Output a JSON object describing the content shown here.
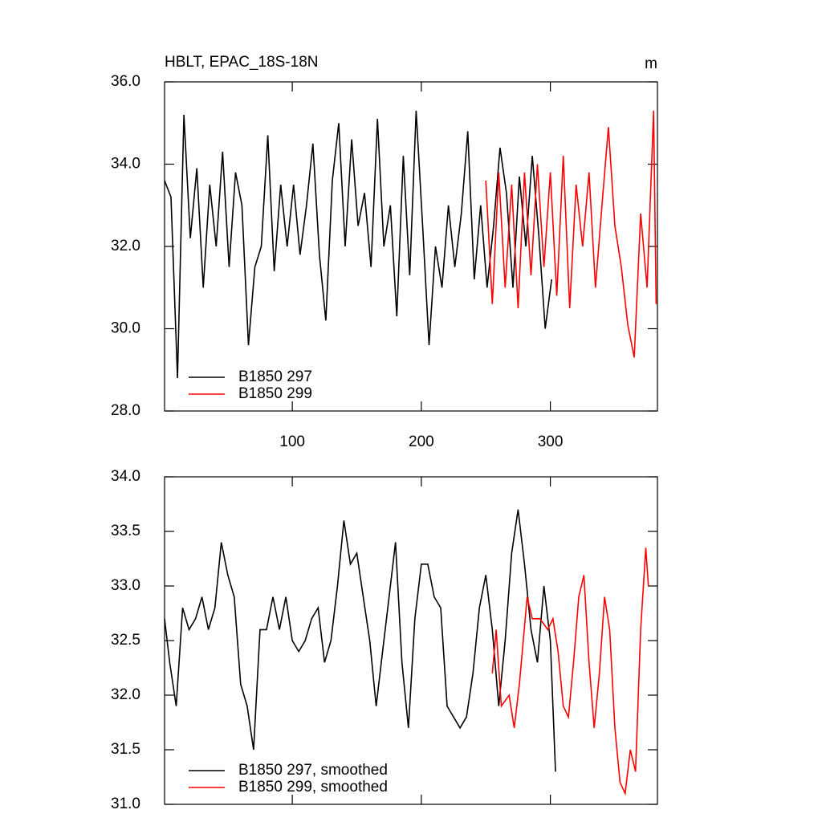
{
  "chart_data": [
    {
      "type": "line",
      "title": "HBLT, EPAC_18S-18N",
      "units": "m",
      "xlim": [
        1,
        383
      ],
      "ylim": [
        28,
        36
      ],
      "xticks": [
        100,
        200,
        300
      ],
      "xtick_labels": true,
      "yticks": [
        {
          "value": 28,
          "label": "28.0"
        },
        {
          "value": 30,
          "label": "30.0"
        },
        {
          "value": 32,
          "label": "32.0"
        },
        {
          "value": 34,
          "label": "34.0"
        },
        {
          "value": 36,
          "label": "36.0"
        }
      ],
      "legend": "lower left",
      "series": [
        {
          "name": "B1850 297",
          "color": "#000000",
          "x": [
            1,
            6,
            11,
            16,
            21,
            26,
            31,
            36,
            41,
            46,
            51,
            56,
            61,
            66,
            71,
            76,
            81,
            86,
            91,
            96,
            101,
            106,
            111,
            116,
            121,
            126,
            131,
            136,
            141,
            146,
            151,
            156,
            161,
            166,
            171,
            176,
            181,
            186,
            191,
            196,
            201,
            206,
            211,
            216,
            221,
            226,
            231,
            236,
            241,
            246,
            251,
            256,
            261,
            266,
            271,
            276,
            281,
            286,
            291,
            296,
            301
          ],
          "values": [
            33.6,
            33.2,
            28.8,
            35.2,
            32.2,
            33.9,
            31.0,
            33.5,
            32.0,
            34.3,
            31.5,
            33.8,
            33.0,
            29.6,
            31.5,
            32.0,
            34.7,
            31.4,
            33.5,
            32.0,
            33.5,
            31.8,
            33.0,
            34.5,
            31.8,
            30.2,
            33.6,
            35.0,
            32.0,
            34.6,
            32.5,
            33.3,
            31.5,
            35.1,
            32.0,
            33.0,
            30.3,
            34.2,
            31.3,
            35.3,
            32.5,
            29.6,
            32.0,
            31.0,
            33.0,
            31.5,
            32.8,
            34.8,
            31.2,
            33.0,
            31.0,
            32.5,
            34.4,
            33.3,
            31.0,
            33.7,
            32.0,
            34.2,
            32.3,
            30.0,
            31.2
          ]
        },
        {
          "name": "B1850 299",
          "color": "#ff0000",
          "x": [
            250,
            255,
            260,
            265,
            270,
            275,
            280,
            285,
            290,
            295,
            300,
            305,
            310,
            315,
            320,
            325,
            330,
            335,
            340,
            345,
            350,
            355,
            360,
            365,
            370,
            375,
            380,
            382
          ],
          "values": [
            33.6,
            30.6,
            33.8,
            31.0,
            33.5,
            30.5,
            33.8,
            31.3,
            34.0,
            31.5,
            33.8,
            30.8,
            34.2,
            30.5,
            33.5,
            32.0,
            33.8,
            31.0,
            33.0,
            34.9,
            32.5,
            31.5,
            30.1,
            29.3,
            32.8,
            31.0,
            35.3,
            30.6
          ]
        }
      ]
    },
    {
      "type": "line",
      "xlim": [
        1,
        383
      ],
      "ylim": [
        31,
        34
      ],
      "xticks": [
        100,
        200,
        300
      ],
      "xtick_labels": false,
      "yticks": [
        {
          "value": 31,
          "label": "31.0"
        },
        31.5,
        {
          "value": 32,
          "label": "32.0"
        },
        32.5,
        {
          "value": 33,
          "label": "33.0"
        },
        33.5,
        {
          "value": 34,
          "label": "34.0"
        }
      ],
      "legend": "lower left",
      "series": [
        {
          "name": "B1850 297, smoothed",
          "color": "#000000",
          "x": [
            1,
            5,
            10,
            15,
            20,
            25,
            30,
            35,
            40,
            45,
            50,
            55,
            60,
            65,
            70,
            75,
            80,
            85,
            90,
            95,
            100,
            105,
            110,
            115,
            120,
            125,
            130,
            135,
            140,
            145,
            150,
            155,
            160,
            165,
            170,
            175,
            180,
            185,
            190,
            195,
            200,
            205,
            210,
            215,
            220,
            225,
            230,
            235,
            240,
            245,
            250,
            255,
            260,
            265,
            270,
            275,
            280,
            285,
            290,
            295,
            300,
            304
          ],
          "values": [
            32.7,
            32.3,
            31.9,
            32.8,
            32.6,
            32.7,
            32.9,
            32.6,
            32.8,
            33.4,
            33.1,
            32.9,
            32.1,
            31.9,
            31.5,
            32.6,
            32.6,
            32.9,
            32.6,
            32.9,
            32.5,
            32.4,
            32.5,
            32.7,
            32.8,
            32.3,
            32.5,
            33.0,
            33.6,
            33.2,
            33.3,
            32.9,
            32.5,
            31.9,
            32.4,
            32.9,
            33.4,
            32.3,
            31.7,
            32.7,
            33.2,
            33.2,
            32.9,
            32.8,
            31.9,
            31.8,
            31.7,
            31.8,
            32.2,
            32.8,
            33.1,
            32.6,
            31.9,
            32.5,
            33.3,
            33.7,
            33.2,
            32.6,
            32.3,
            33.0,
            32.5,
            31.3
          ]
        },
        {
          "name": "B1850 299, smoothed",
          "color": "#ff0000",
          "x": [
            255,
            258,
            262,
            268,
            272,
            276,
            282,
            286,
            292,
            298,
            302,
            306,
            310,
            314,
            318,
            322,
            326,
            330,
            334,
            338,
            342,
            346,
            350,
            354,
            358,
            362,
            366,
            370,
            374,
            376
          ],
          "values": [
            32.2,
            32.6,
            31.9,
            32.0,
            31.7,
            32.1,
            32.9,
            32.7,
            32.7,
            32.6,
            32.7,
            32.4,
            31.9,
            31.8,
            32.3,
            32.9,
            33.1,
            32.3,
            31.7,
            32.2,
            32.9,
            32.6,
            31.7,
            31.2,
            31.1,
            31.5,
            31.3,
            32.6,
            33.35,
            33.0
          ]
        }
      ]
    }
  ]
}
